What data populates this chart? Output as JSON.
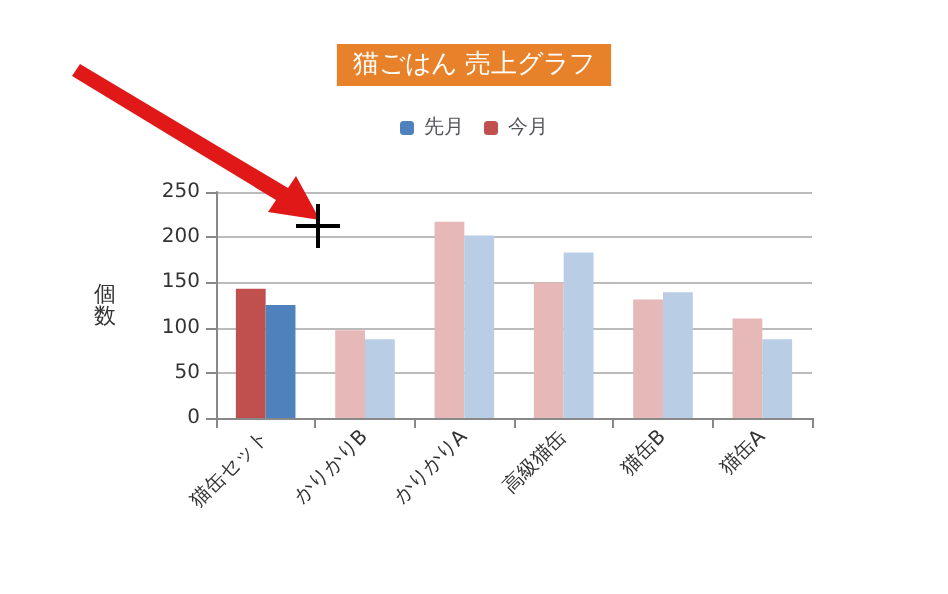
{
  "chart_data": {
    "type": "bar",
    "title": "猫ごはん 売上グラフ",
    "ylabel": "個数",
    "categories": [
      "猫缶セット",
      "かりかりB",
      "かりかりA",
      "高級猫缶",
      "猫缶B",
      "猫缶A"
    ],
    "series": [
      {
        "name": "今月",
        "color": "#c0504d",
        "colors": [
          "#c0504d",
          "#e6b9b8",
          "#e6b9b8",
          "#e6b9b8",
          "#e6b9b8",
          "#e6b9b8"
        ],
        "values": [
          143,
          97,
          217,
          150,
          131,
          110
        ]
      },
      {
        "name": "先月",
        "color": "#4f81bd",
        "colors": [
          "#4f81bd",
          "#b9cde5",
          "#b9cde5",
          "#b9cde5",
          "#b9cde5",
          "#b9cde5"
        ],
        "values": [
          125,
          87,
          202,
          183,
          139,
          87
        ]
      }
    ],
    "ylim": [
      0,
      250
    ],
    "yticks": [
      0,
      50,
      100,
      150,
      200,
      250
    ],
    "grid": "y",
    "legend": "top"
  }
}
